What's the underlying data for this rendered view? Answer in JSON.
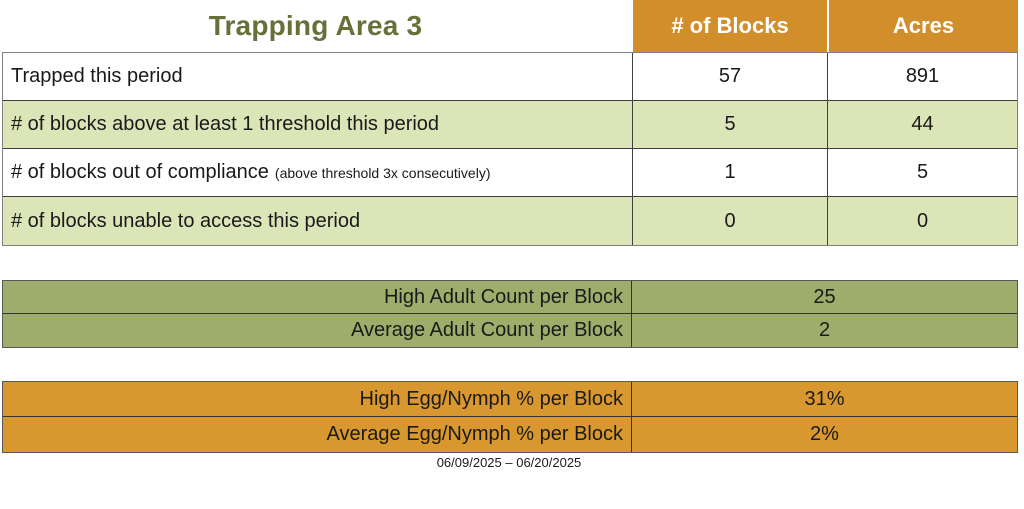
{
  "title": "Trapping Area 3",
  "columns": {
    "blocks": "# of Blocks",
    "acres": "Acres"
  },
  "main_table": {
    "rows": [
      {
        "label": "Trapped this period",
        "note": "",
        "blocks": "57",
        "acres": "891"
      },
      {
        "label": "# of blocks above at least 1 threshold this period",
        "note": "",
        "blocks": "5",
        "acres": "44"
      },
      {
        "label": "# of blocks out of compliance",
        "note": "(above threshold 3x consecutively)",
        "blocks": "1",
        "acres": "5"
      },
      {
        "label": "# of blocks unable to access this period",
        "note": "",
        "blocks": "0",
        "acres": "0"
      }
    ]
  },
  "adult_table": {
    "rows": [
      {
        "label": "High Adult Count per Block",
        "value": "25"
      },
      {
        "label": "Average Adult Count per Block",
        "value": "2"
      }
    ]
  },
  "egg_table": {
    "rows": [
      {
        "label": "High Egg/Nymph % per Block",
        "value": "31%"
      },
      {
        "label": "Average Egg/Nymph % per Block",
        "value": "2%"
      }
    ]
  },
  "date_range": "06/09/2025 – 06/20/2025",
  "colors": {
    "title_green": "#66713A",
    "header_orange": "#D28E2B",
    "row_orange": "#D9982F",
    "light_green": "#DBE5B8",
    "olive_green": "#9EAD6B",
    "border_gray": "#808080",
    "border_dark": "#404040"
  }
}
